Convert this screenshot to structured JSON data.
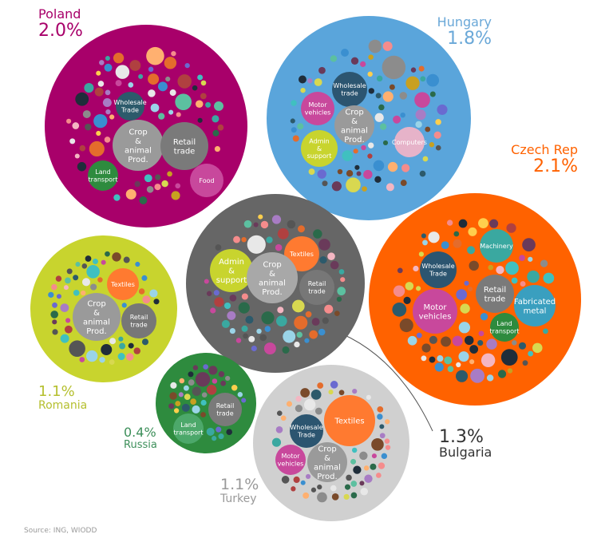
{
  "chart_data": {
    "type": "bubble",
    "title": "",
    "source": "Source: ING, WIODD",
    "countries": [
      {
        "id": "poland",
        "name": "Poland",
        "value_label": "2.0%",
        "value": 2.0,
        "color": "#a8006a",
        "text_color": "#a8006a",
        "sectors": [
          {
            "label": "Wholesale Trade",
            "color": "#2c5a6b"
          },
          {
            "label": "Crop & animal Prod.",
            "color": "#9a9a9a"
          },
          {
            "label": "Retail trade",
            "color": "#7a7a7a"
          },
          {
            "label": "Land transport",
            "color": "#2e8b3e"
          },
          {
            "label": "Food",
            "color": "#c8489c"
          }
        ]
      },
      {
        "id": "hungary",
        "name": "Hungary",
        "value_label": "1.8%",
        "value": 1.8,
        "color": "#5aa5db",
        "text_color": "#6aa8d8",
        "sectors": [
          {
            "label": "Wholesale trade",
            "color": "#2c5570"
          },
          {
            "label": "Motor vehicles",
            "color": "#c8489c"
          },
          {
            "label": "Crop & animal Prod.",
            "color": "#9a9a9a"
          },
          {
            "label": "Admin & support",
            "color": "#c8d42e"
          },
          {
            "label": "Computers",
            "color": "#e6b3c9"
          }
        ]
      },
      {
        "id": "czech",
        "name": "Czech Rep",
        "value_label": "2.1%",
        "value": 2.1,
        "color": "#ff6200",
        "text_color": "#ff6200",
        "sectors": [
          {
            "label": "Machinery",
            "color": "#3aa8a0"
          },
          {
            "label": "Wholesale Trade",
            "color": "#2c5570"
          },
          {
            "label": "Retail trade",
            "color": "#7a7a7a"
          },
          {
            "label": "Fabricated metal",
            "color": "#3a9fbf"
          },
          {
            "label": "Motor vehicles",
            "color": "#c8489c"
          },
          {
            "label": "Land transport",
            "color": "#2e8b3e"
          }
        ]
      },
      {
        "id": "bulgaria",
        "name": "Bulgaria",
        "value_label": "1.3%",
        "value": 1.3,
        "color": "#666666",
        "text_color": "#333333",
        "sectors": [
          {
            "label": "Admin & support",
            "color": "#c8d42e"
          },
          {
            "label": "Textiles",
            "color": "#ff7a30"
          },
          {
            "label": "Crop & animal Prod.",
            "color": "#a8a8a8"
          },
          {
            "label": "Retail trade",
            "color": "#777777"
          }
        ]
      },
      {
        "id": "romania",
        "name": "Romania",
        "value_label": "1.1%",
        "value": 1.1,
        "color": "#c8d42e",
        "text_color": "#b5bf2e",
        "sectors": [
          {
            "label": "Textiles",
            "color": "#ff7a30"
          },
          {
            "label": "Crop & animal Prod.",
            "color": "#9a9a9a"
          },
          {
            "label": "Retail trade",
            "color": "#777777"
          }
        ]
      },
      {
        "id": "russia",
        "name": "Russia",
        "value_label": "0.4%",
        "value": 0.4,
        "color": "#2e8b3e",
        "text_color": "#3d8f5a",
        "sectors": [
          {
            "label": "Retail trade",
            "color": "#7a7a7a"
          },
          {
            "label": "Land transport",
            "color": "#4ca86a"
          }
        ]
      },
      {
        "id": "turkey",
        "name": "Turkey",
        "value_label": "1.1%",
        "value": 1.1,
        "color": "#d0d0d0",
        "text_color": "#999999",
        "sectors": [
          {
            "label": "Textiles",
            "color": "#ff7a30"
          },
          {
            "label": "Wholesale Trade",
            "color": "#2c5570"
          },
          {
            "label": "Motor vehicles",
            "color": "#c8489c"
          },
          {
            "label": "Crop & animal Prod.",
            "color": "#9a9a9a"
          }
        ]
      }
    ]
  }
}
